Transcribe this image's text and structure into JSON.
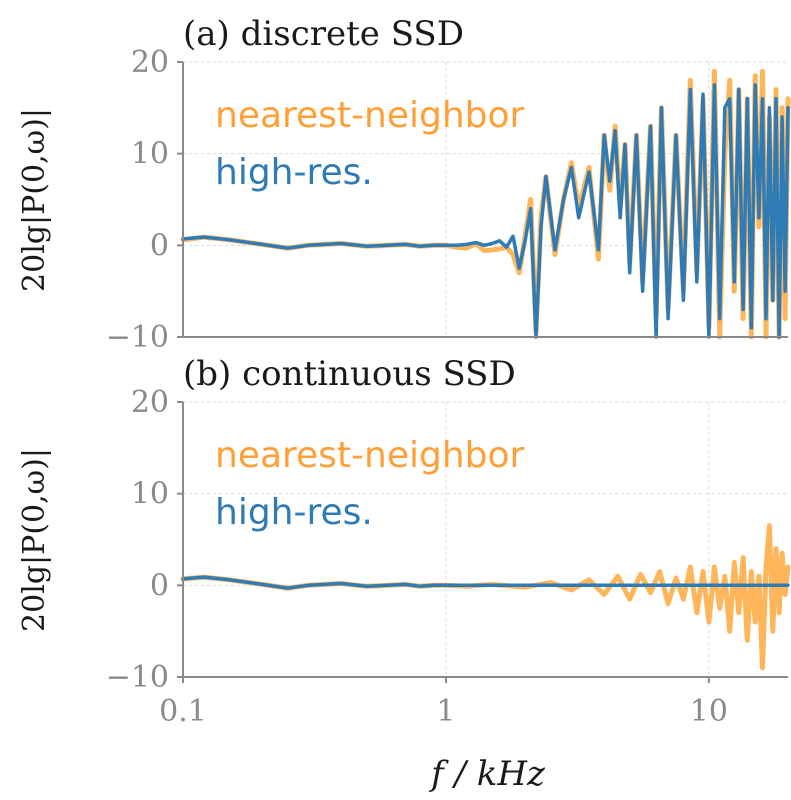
{
  "chart_data": [
    {
      "type": "line",
      "panel": "(a)",
      "title": "(a) discrete SSD",
      "ylabel": "20lg|P(0,ω)|",
      "xlabel": "",
      "xscale": "log",
      "xlim": [
        0.1,
        20
      ],
      "ylim": [
        -10,
        20
      ],
      "yticks": [
        "20",
        "10",
        "0",
        "−10"
      ],
      "xticks": [],
      "grid": true,
      "legend_position": "top-left",
      "series": [
        {
          "name": "nearest-neighbor",
          "color": "#ffb55a",
          "x": [
            0.1,
            0.12,
            0.15,
            0.2,
            0.25,
            0.3,
            0.4,
            0.5,
            0.6,
            0.7,
            0.8,
            0.9,
            1.0,
            1.1,
            1.2,
            1.3,
            1.4,
            1.5,
            1.6,
            1.7,
            1.8,
            1.9,
            2.0,
            2.1,
            2.2,
            2.3,
            2.4,
            2.6,
            2.8,
            3.0,
            3.2,
            3.5,
            3.8,
            4.0,
            4.2,
            4.4,
            4.6,
            4.8,
            5.0,
            5.3,
            5.6,
            6.0,
            6.3,
            6.6,
            7.0,
            7.5,
            8.0,
            8.5,
            9.0,
            9.5,
            10.0,
            10.5,
            11.0,
            11.5,
            12.0,
            12.5,
            13.0,
            13.5,
            14.0,
            14.5,
            15.0,
            15.5,
            16.0,
            16.5,
            17.0,
            17.5,
            18.0,
            18.5,
            19.0,
            19.5,
            20.0
          ],
          "y": [
            0.6,
            0.9,
            0.6,
            0.1,
            -0.3,
            0.0,
            0.2,
            -0.1,
            0.0,
            0.1,
            -0.1,
            0.0,
            0.0,
            -0.2,
            -0.3,
            0.2,
            -0.6,
            -0.5,
            -0.4,
            -0.2,
            -1.0,
            -3.0,
            1.0,
            5.0,
            -9.5,
            3.0,
            7.5,
            -1.0,
            5.0,
            9.0,
            4.0,
            8.5,
            -1.5,
            12.0,
            6.0,
            13.0,
            4.0,
            11.0,
            -2.0,
            12.0,
            -4.0,
            13.0,
            -8.0,
            15.0,
            -7.0,
            12.0,
            -5.0,
            18.0,
            -3.0,
            16.0,
            -9.0,
            19.0,
            -10.0,
            10.0,
            18.0,
            -5.0,
            17.0,
            -8.0,
            16.0,
            -10.0,
            18.5,
            2.0,
            19.0,
            -10.0,
            14.0,
            -6.0,
            17.0,
            -10.0,
            15.0,
            -8.0,
            16.0
          ]
        },
        {
          "name": "high-res.",
          "color": "#2f7bb6",
          "x": [
            0.1,
            0.12,
            0.15,
            0.2,
            0.25,
            0.3,
            0.4,
            0.5,
            0.6,
            0.7,
            0.8,
            0.9,
            1.0,
            1.1,
            1.2,
            1.3,
            1.4,
            1.5,
            1.6,
            1.7,
            1.8,
            1.9,
            2.0,
            2.1,
            2.2,
            2.3,
            2.4,
            2.6,
            2.8,
            3.0,
            3.2,
            3.5,
            3.8,
            4.0,
            4.2,
            4.4,
            4.6,
            4.8,
            5.0,
            5.3,
            5.6,
            6.0,
            6.3,
            6.6,
            7.0,
            7.5,
            8.0,
            8.5,
            9.0,
            9.5,
            10.0,
            10.5,
            11.0,
            11.5,
            12.0,
            12.5,
            13.0,
            13.5,
            14.0,
            14.5,
            15.0,
            15.5,
            16.0,
            16.5,
            17.0,
            17.5,
            18.0,
            18.5,
            19.0,
            19.5,
            20.0
          ],
          "y": [
            0.7,
            0.9,
            0.6,
            0.1,
            -0.3,
            0.0,
            0.2,
            -0.1,
            0.0,
            0.1,
            -0.1,
            0.0,
            0.0,
            0.0,
            0.1,
            0.3,
            0.0,
            0.2,
            0.5,
            -0.2,
            1.0,
            -2.5,
            0.5,
            4.0,
            -10.0,
            2.0,
            7.5,
            -0.5,
            5.0,
            8.5,
            3.0,
            8.0,
            -0.5,
            12.0,
            7.0,
            12.5,
            3.0,
            11.0,
            -3.0,
            12.0,
            -5.0,
            13.0,
            -10.0,
            15.0,
            -8.0,
            12.0,
            -6.0,
            17.0,
            -4.0,
            16.5,
            -10.0,
            17.5,
            -8.0,
            15.0,
            16.0,
            -4.0,
            17.0,
            -7.0,
            16.0,
            -9.0,
            17.5,
            3.0,
            16.0,
            -8.0,
            15.0,
            -6.0,
            16.0,
            -10.0,
            14.0,
            -5.0,
            15.0
          ]
        }
      ]
    },
    {
      "type": "line",
      "panel": "(b)",
      "title": "(b) continuous SSD",
      "ylabel": "20lg|P(0,ω)|",
      "xlabel": "f / kHz",
      "xscale": "log",
      "xlim": [
        0.1,
        20
      ],
      "ylim": [
        -10,
        20
      ],
      "yticks": [
        "20",
        "10",
        "0",
        "−10"
      ],
      "xticks": [
        "0.1",
        "1",
        "10"
      ],
      "grid": true,
      "legend_position": "top-left",
      "series": [
        {
          "name": "nearest-neighbor",
          "color": "#ffb55a",
          "x": [
            0.1,
            0.12,
            0.15,
            0.2,
            0.25,
            0.3,
            0.4,
            0.5,
            0.6,
            0.7,
            0.8,
            0.9,
            1.0,
            1.2,
            1.5,
            2.0,
            2.5,
            3.0,
            3.5,
            4.0,
            4.5,
            5.0,
            5.5,
            6.0,
            6.5,
            7.0,
            7.5,
            8.0,
            8.5,
            9.0,
            9.5,
            10.0,
            10.5,
            11.0,
            11.5,
            12.0,
            12.5,
            13.0,
            13.5,
            14.0,
            14.5,
            15.0,
            15.5,
            16.0,
            16.5,
            17.0,
            17.5,
            18.0,
            18.5,
            19.0,
            19.5,
            20.0
          ],
          "y": [
            0.7,
            0.9,
            0.6,
            0.1,
            -0.3,
            0.0,
            0.2,
            -0.1,
            0.0,
            0.1,
            -0.1,
            0.0,
            0.0,
            -0.1,
            0.1,
            -0.2,
            0.3,
            -0.5,
            0.6,
            -1.0,
            1.0,
            -1.5,
            1.2,
            -0.8,
            1.5,
            -2.0,
            0.8,
            -1.5,
            2.0,
            -3.0,
            1.5,
            -4.0,
            2.0,
            -2.5,
            1.0,
            -5.0,
            2.5,
            -3.0,
            3.0,
            -6.0,
            1.5,
            -4.0,
            1.0,
            -9.0,
            2.0,
            6.5,
            -5.0,
            4.0,
            -3.0,
            3.5,
            -1.0,
            2.0
          ]
        },
        {
          "name": "high-res.",
          "color": "#2f7bb6",
          "x": [
            0.1,
            0.12,
            0.15,
            0.2,
            0.25,
            0.3,
            0.4,
            0.5,
            0.6,
            0.7,
            0.8,
            0.9,
            1.0,
            1.5,
            2.0,
            5.0,
            10.0,
            20.0
          ],
          "y": [
            0.7,
            0.9,
            0.6,
            0.1,
            -0.3,
            0.0,
            0.2,
            -0.1,
            0.0,
            0.1,
            -0.1,
            0.0,
            0.0,
            0.0,
            0.0,
            0.0,
            0.0,
            0.0
          ]
        }
      ]
    }
  ]
}
